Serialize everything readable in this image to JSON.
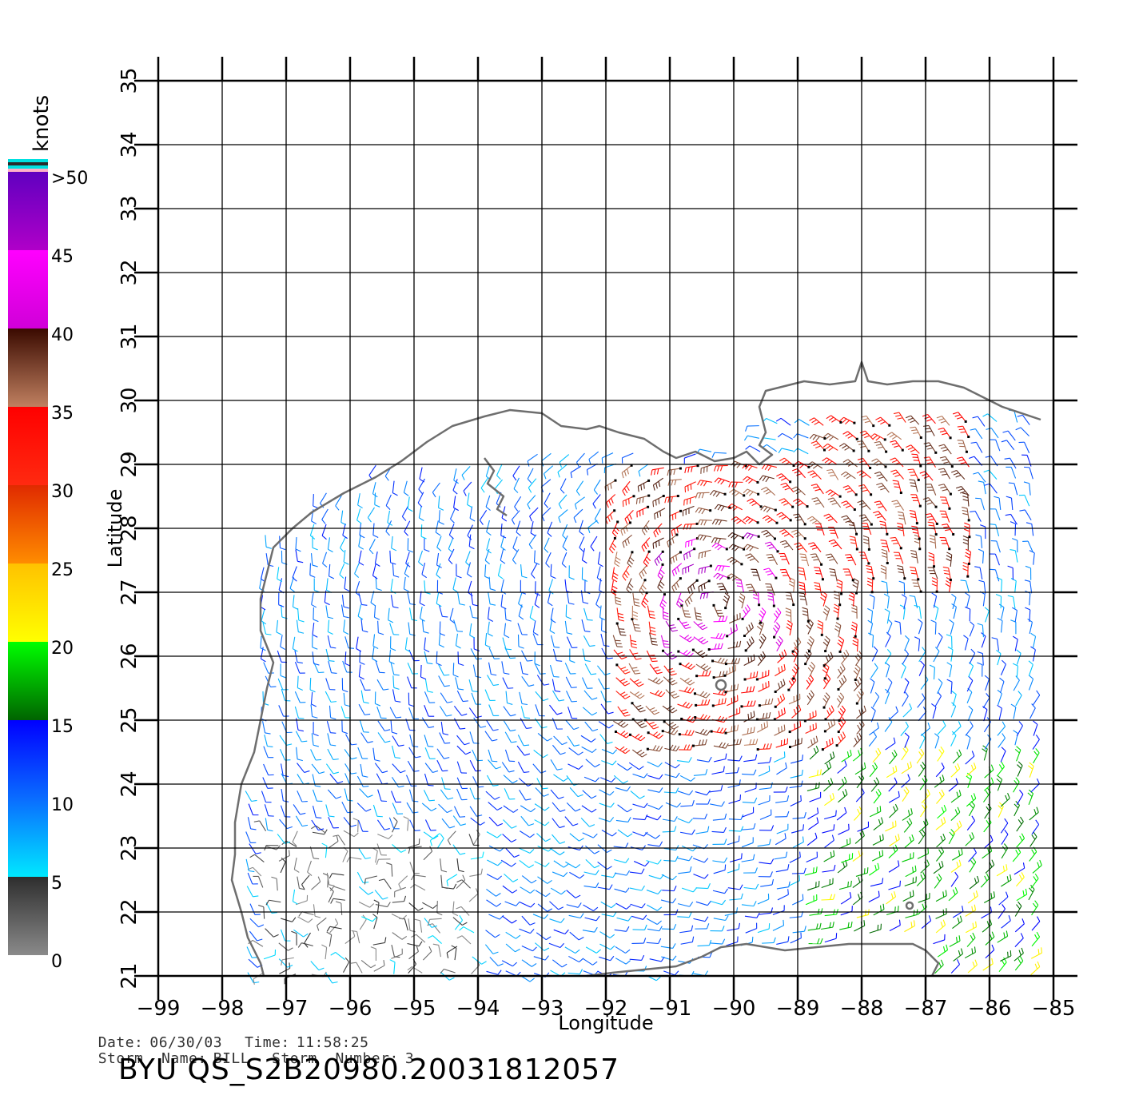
{
  "axes": {
    "xlabel": "Longitude",
    "ylabel": "Latitude",
    "x_ticks": [
      "−99",
      "−98",
      "−97",
      "−96",
      "−95",
      "−94",
      "−93",
      "−92",
      "−91",
      "−90",
      "−89",
      "−88",
      "−87",
      "−86",
      "−85"
    ],
    "y_ticks": [
      "21",
      "22",
      "23",
      "24",
      "25",
      "26",
      "27",
      "28",
      "29",
      "30",
      "31",
      "32",
      "33",
      "34",
      "35"
    ],
    "xlim": [
      -99,
      -85
    ],
    "ylim": [
      21,
      35
    ],
    "grid": true
  },
  "colorbar": {
    "title": "knots",
    "labels": [
      ">50",
      "45",
      "40",
      "35",
      "30",
      "25",
      "20",
      "15",
      "10",
      "5",
      "0"
    ],
    "segments": [
      {
        "from": 0,
        "to": 5,
        "top": "#2e2e2e",
        "bottom": "#8a8a8a"
      },
      {
        "from": 5,
        "to": 10,
        "top": "#0a6cff",
        "bottom": "#00e8ff"
      },
      {
        "from": 10,
        "to": 15,
        "top": "#0000ff",
        "bottom": "#0a6cff"
      },
      {
        "from": 15,
        "to": 20,
        "top": "#00ff00",
        "bottom": "#006400"
      },
      {
        "from": 20,
        "to": 25,
        "top": "#ffc200",
        "bottom": "#ffff00"
      },
      {
        "from": 25,
        "to": 30,
        "top": "#e02a00",
        "bottom": "#ff8c00"
      },
      {
        "from": 30,
        "to": 35,
        "top": "#ff0000",
        "bottom": "#ff2a10"
      },
      {
        "from": 35,
        "to": 40,
        "top": "#3a0a00",
        "bottom": "#c08060"
      },
      {
        "from": 40,
        "to": 45,
        "top": "#ff00ff",
        "bottom": "#d000d8"
      },
      {
        "from": 45,
        "to": 50,
        "top": "#6000c0",
        "bottom": "#b000c8"
      }
    ]
  },
  "info": {
    "date_label": "Date:",
    "date": "06/30/03",
    "time_label": "Time:",
    "time": "11:58:25",
    "storm_name_label": "Storm  Name:",
    "storm_name": "BILL",
    "storm_number_label": "Storm  Number:",
    "storm_number": "3"
  },
  "footer_title": "BYU  QS_S2B20980.20031812057",
  "colors": {
    "coastline": "#6e6e6e",
    "grid": "#000000"
  },
  "chart_data": {
    "type": "wind-barb-map",
    "variable": "wind speed (knots)",
    "storm_center_approx": {
      "lon": -90.3,
      "lat": 26.8
    },
    "speed_regions": [
      {
        "lon": [
          -97.5,
          -94.0
        ],
        "lat": [
          21.0,
          23.3
        ],
        "speed_range_knots": [
          0,
          5
        ]
      },
      {
        "lon": [
          -97.3,
          -93.0
        ],
        "lat": [
          23.3,
          27.5
        ],
        "speed_range_knots": [
          5,
          15
        ]
      },
      {
        "lon": [
          -92.0,
          -88.0
        ],
        "lat": [
          24.5,
          29.0
        ],
        "speed_range_knots": [
          25,
          45
        ]
      },
      {
        "lon": [
          -88.8,
          -86.2
        ],
        "lat": [
          27.0,
          30.0
        ],
        "speed_range_knots": [
          30,
          40
        ]
      },
      {
        "lon": [
          -89.0,
          -85.2
        ],
        "lat": [
          21.0,
          24.5
        ],
        "speed_range_knots": [
          10,
          25
        ]
      }
    ]
  }
}
